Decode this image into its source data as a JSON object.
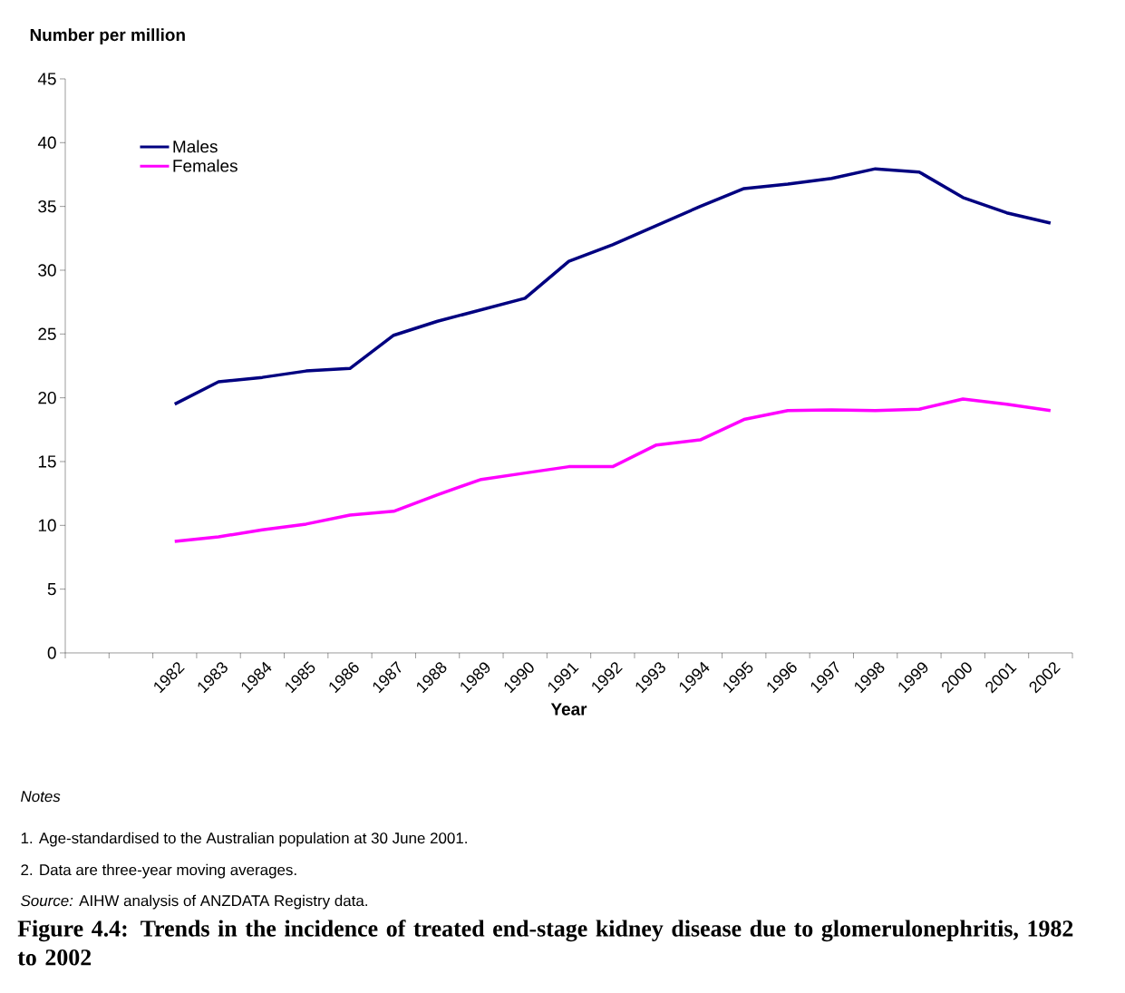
{
  "chart_data": {
    "type": "line",
    "title": "Figure 4.4: Trends in the incidence of treated end-stage kidney disease due to glomerulonephritis, 1982 to 2002",
    "ylabel": "Number per million",
    "xlabel": "Year",
    "categories": [
      null,
      null,
      "1982",
      "1983",
      "1984",
      "1985",
      "1986",
      "1987",
      "1988",
      "1989",
      "1990",
      "1991",
      "1992",
      "1993",
      "1994",
      "1995",
      "1996",
      "1997",
      "1998",
      "1999",
      "2000",
      "2001",
      "2002"
    ],
    "series": [
      {
        "name": "Males",
        "color": "#000080",
        "values": [
          null,
          null,
          19.5,
          21.25,
          21.6,
          22.1,
          22.3,
          24.9,
          26.0,
          26.9,
          27.8,
          30.7,
          32.0,
          33.5,
          35.0,
          36.4,
          36.75,
          37.2,
          37.95,
          37.7,
          35.7,
          34.5,
          33.7
        ]
      },
      {
        "name": "Females",
        "color": "#ff00ff",
        "values": [
          null,
          null,
          8.75,
          9.1,
          9.65,
          10.1,
          10.8,
          11.1,
          12.4,
          13.6,
          14.1,
          14.6,
          14.6,
          16.3,
          16.7,
          18.3,
          19.0,
          19.05,
          19.0,
          19.1,
          19.9,
          19.5,
          19.0
        ]
      }
    ],
    "ylim": [
      0,
      45
    ],
    "yticks": [
      0,
      5,
      10,
      15,
      20,
      25,
      30,
      35,
      40,
      45
    ],
    "legend": "top left",
    "grid": false,
    "marker": "none",
    "line_style": "solid",
    "annotations": [
      "Notes",
      "1. Age-standardised to the Australian population at 30 June 2001.",
      "2. Data are three-year moving averages.",
      "*Source:* AIHW analysis of ANZDATA Registry data."
    ]
  }
}
